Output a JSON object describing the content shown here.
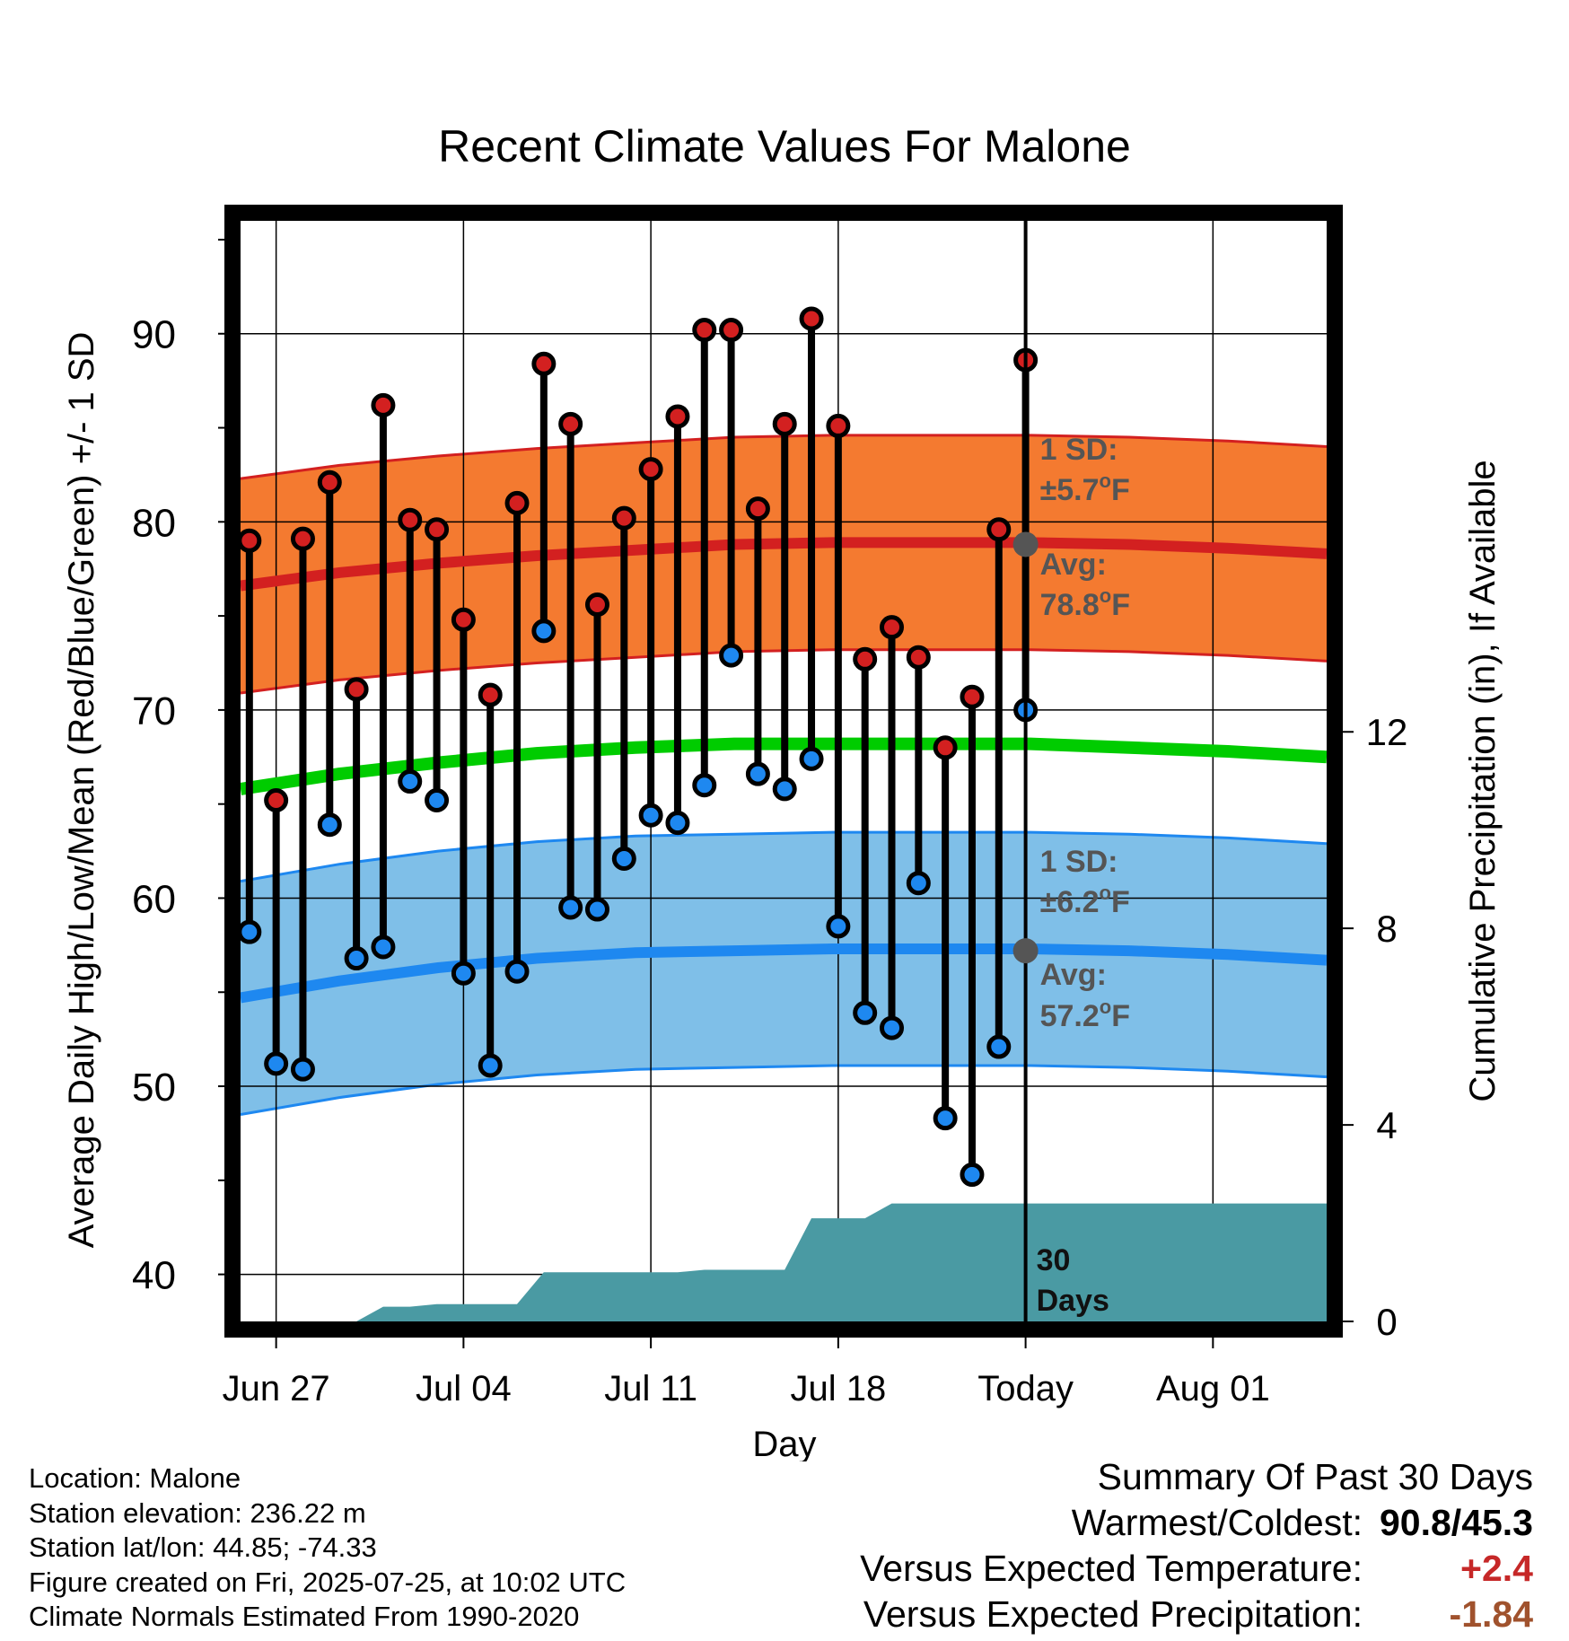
{
  "chart_data": {
    "type": "line",
    "title": "Recent Climate Values For Malone",
    "xlabel": "Day",
    "ylabel": "Average Daily High/Low/Mean (Red/Blue/Green) +/- 1 SD",
    "ylabel_right": "Cumulative Precipitation (in), If Available",
    "x_ticks": [
      "Jun 27",
      "Jul 04",
      "Jul 11",
      "Jul 18",
      "Today",
      "Aug 01"
    ],
    "ylim": [
      37.5,
      96
    ],
    "yticks": [
      40,
      50,
      60,
      70,
      80,
      90
    ],
    "ylim_right": [
      0,
      22.4
    ],
    "yticks_right": [
      0,
      4,
      8,
      12
    ],
    "grid": true,
    "daily_high": [
      79.0,
      65.2,
      79.1,
      82.1,
      71.1,
      86.2,
      80.1,
      79.6,
      74.8,
      70.8,
      81.0,
      88.4,
      85.2,
      75.6,
      80.2,
      82.8,
      85.6,
      90.2,
      90.2,
      80.7,
      85.2,
      90.8,
      85.1,
      72.7,
      74.4,
      72.8,
      68.0,
      70.7,
      79.6,
      88.6
    ],
    "daily_low": [
      58.2,
      51.2,
      50.9,
      63.9,
      56.8,
      57.4,
      66.2,
      65.2,
      56.0,
      51.1,
      56.1,
      74.2,
      59.5,
      59.4,
      62.1,
      64.4,
      64.0,
      66.0,
      72.9,
      66.6,
      65.8,
      67.4,
      58.5,
      53.9,
      53.1,
      60.8,
      48.3,
      45.3,
      52.1,
      70.0
    ],
    "cumulative_precipitation": [
      0,
      0,
      0,
      0,
      0,
      0,
      0.3,
      0.3,
      0.35,
      0.35,
      0.35,
      0.35,
      1.0,
      1.0,
      1.0,
      1.0,
      1.0,
      1.0,
      1.05,
      1.05,
      1.05,
      1.05,
      2.1,
      2.1,
      2.1,
      2.4,
      2.4,
      2.4,
      2.4,
      2.4,
      2.4,
      2.4,
      2.4,
      2.4,
      2.4,
      2.4,
      2.4,
      2.4,
      2.4,
      2.4,
      2.4,
      2.4
    ],
    "normal_high": [
      76.6,
      77.3,
      77.8,
      78.2,
      78.5,
      78.8,
      78.9,
      78.9,
      78.9,
      78.8,
      78.6,
      78.3
    ],
    "normal_high_sd": 5.7,
    "normal_mean": [
      65.8,
      66.6,
      67.2,
      67.7,
      68.0,
      68.2,
      68.2,
      68.2,
      68.2,
      68.0,
      67.8,
      67.5
    ],
    "normal_low": [
      54.7,
      55.6,
      56.3,
      56.8,
      57.1,
      57.2,
      57.3,
      57.3,
      57.3,
      57.2,
      57.0,
      56.7
    ],
    "normal_low_sd": 6.2,
    "annotations": {
      "high_sd_label": "1 SD:",
      "high_sd_value": "±5.7",
      "high_avg_label": "Avg:",
      "high_avg_value": "78.8",
      "low_sd_label": "1 SD:",
      "low_sd_value": "±6.2",
      "low_avg_label": "Avg:",
      "low_avg_value": "57.2",
      "degree_unit": "F",
      "precip_days_line1": "30",
      "precip_days_line2": "Days"
    },
    "colors": {
      "high": "#d32020",
      "high_band": "#f47a30",
      "mean": "#00cc00",
      "low": "#1e88f0",
      "low_band": "#7fbfe8",
      "precip": "#4a9aa3",
      "annotation": "#555555"
    }
  },
  "info": {
    "location": "Location: Malone",
    "elevation": "Station elevation: 236.22 m",
    "latlon": "Station lat/lon: 44.85; -74.33",
    "created": "Figure created on Fri, 2025-07-25, at 10:02 UTC",
    "normals": "Climate Normals Estimated From 1990-2020"
  },
  "summary": {
    "heading": "Summary Of Past 30 Days",
    "warmest_label": "Warmest/Coldest:",
    "warmest_value": "90.8/45.3",
    "temp_label": "Versus Expected Temperature:",
    "temp_value": "+2.4",
    "precip_label": "Versus Expected Precipitation:",
    "precip_value": "-1.84"
  }
}
